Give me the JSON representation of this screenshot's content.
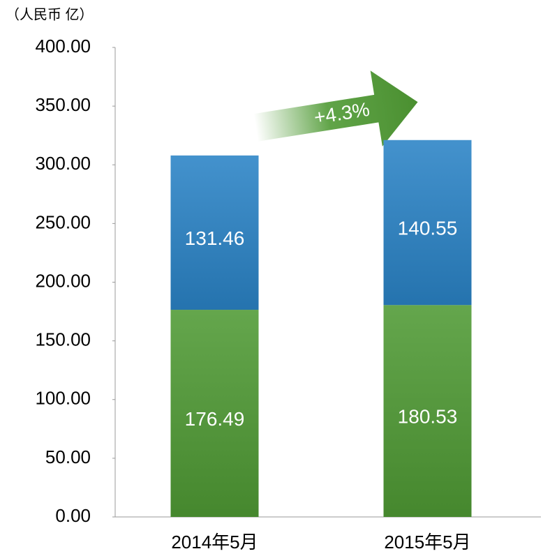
{
  "chart_data": {
    "type": "stacked_bar",
    "axis_label": "（人民币 亿）",
    "annotation": "+4.3%",
    "categories": [
      "2014年5月",
      "2015年5月"
    ],
    "series": [
      {
        "color": "#4f9a34",
        "values": [
          176.49,
          180.53
        ]
      },
      {
        "color": "#2a83c6",
        "values": [
          131.46,
          140.55
        ]
      }
    ],
    "ylim": [
      0,
      400
    ],
    "yticks": [
      {
        "value": 0,
        "label": "0.00"
      },
      {
        "value": 50,
        "label": "50.00"
      },
      {
        "value": 100,
        "label": "100.00"
      },
      {
        "value": 150,
        "label": "150.00"
      },
      {
        "value": 200,
        "label": "200.00"
      },
      {
        "value": 250,
        "label": "250.00"
      },
      {
        "value": 300,
        "label": "300.00"
      },
      {
        "value": 350,
        "label": "350.00"
      },
      {
        "value": 400,
        "label": "400.00"
      }
    ]
  }
}
